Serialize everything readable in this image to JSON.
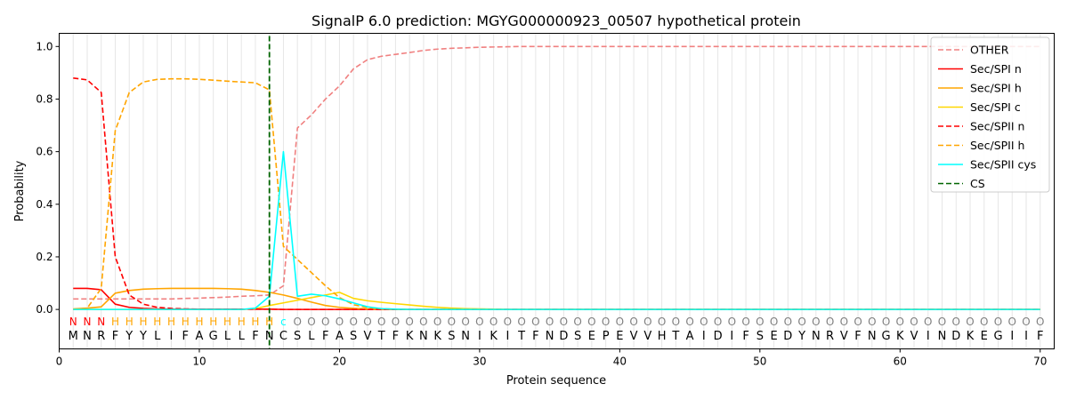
{
  "chart_data": {
    "type": "line",
    "title": "SignalP 6.0 prediction: MGYG000000923_00507 hypothetical protein",
    "xlabel": "Protein sequence",
    "ylabel": "Probability",
    "xlim": [
      0,
      71
    ],
    "ylim": [
      -0.15,
      1.05
    ],
    "xticks": [
      "0",
      "10",
      "20",
      "30",
      "40",
      "50",
      "60",
      "70"
    ],
    "yticks": [
      "0.0",
      "0.2",
      "0.4",
      "0.6",
      "0.8",
      "1.0"
    ],
    "legend_position": "top-right",
    "sequence": [
      "M",
      "N",
      "R",
      "F",
      "Y",
      "Y",
      "L",
      "I",
      "F",
      "A",
      "G",
      "L",
      "L",
      "F",
      "N",
      "C",
      "S",
      "L",
      "F",
      "A",
      "S",
      "V",
      "T",
      "F",
      "K",
      "N",
      "K",
      "S",
      "N",
      "I",
      "K",
      "I",
      "T",
      "F",
      "N",
      "D",
      "S",
      "E",
      "P",
      "E",
      "V",
      "V",
      "H",
      "T",
      "A",
      "I",
      "D",
      "I",
      "F",
      "S",
      "E",
      "D",
      "Y",
      "N",
      "R",
      "V",
      "F",
      "N",
      "G",
      "K",
      "V",
      "I",
      "N",
      "D",
      "K",
      "E",
      "G",
      "I",
      "I",
      "F"
    ],
    "region_labels": [
      "N",
      "N",
      "N",
      "H",
      "H",
      "H",
      "H",
      "H",
      "H",
      "H",
      "H",
      "H",
      "H",
      "H",
      "H",
      "c",
      "O",
      "O",
      "O",
      "O",
      "O",
      "O",
      "O",
      "O",
      "O",
      "O",
      "O",
      "O",
      "O",
      "O",
      "O",
      "O",
      "O",
      "O",
      "O",
      "O",
      "O",
      "O",
      "O",
      "O",
      "O",
      "O",
      "O",
      "O",
      "O",
      "O",
      "O",
      "O",
      "O",
      "O",
      "O",
      "O",
      "O",
      "O",
      "O",
      "O",
      "O",
      "O",
      "O",
      "O",
      "O",
      "O",
      "O",
      "O",
      "O",
      "O",
      "O",
      "O",
      "O",
      "O"
    ],
    "region_colors": {
      "N": "#ff0000",
      "H": "#ffa500",
      "c": "#00ffff",
      "O": "#808080"
    },
    "cs_position": 15,
    "series": [
      {
        "name": "OTHER",
        "color": "#f08080",
        "dash": true,
        "values": [
          0.04,
          0.04,
          0.04,
          0.04,
          0.04,
          0.04,
          0.04,
          0.04,
          0.042,
          0.043,
          0.045,
          0.047,
          0.05,
          0.052,
          0.055,
          0.09,
          0.69,
          0.74,
          0.8,
          0.85,
          0.915,
          0.95,
          0.963,
          0.97,
          0.977,
          0.985,
          0.99,
          0.993,
          0.995,
          0.997,
          0.998,
          0.999,
          1,
          1,
          1,
          1,
          1,
          1,
          1,
          1,
          1,
          1,
          1,
          1,
          1,
          1,
          1,
          1,
          1,
          1,
          1,
          1,
          1,
          1,
          1,
          1,
          1,
          1,
          1,
          1,
          1,
          1,
          1,
          1,
          1,
          1,
          1,
          1,
          1,
          1
        ]
      },
      {
        "name": "Sec/SPI n",
        "color": "#ff0000",
        "dash": false,
        "values": [
          0.08,
          0.08,
          0.075,
          0.02,
          0.008,
          0.004,
          0.002,
          0.001,
          0.001,
          0.001,
          0.001,
          0.001,
          0.001,
          0.001,
          0.001,
          0,
          0,
          0,
          0,
          0,
          0,
          0,
          0,
          0,
          0,
          0,
          0,
          0,
          0,
          0,
          0,
          0,
          0,
          0,
          0,
          0,
          0,
          0,
          0,
          0,
          0,
          0,
          0,
          0,
          0,
          0,
          0,
          0,
          0,
          0,
          0,
          0,
          0,
          0,
          0,
          0,
          0,
          0,
          0,
          0,
          0,
          0,
          0,
          0,
          0,
          0,
          0,
          0,
          0,
          0
        ]
      },
      {
        "name": "Sec/SPI h",
        "color": "#ffa500",
        "dash": false,
        "values": [
          0.002,
          0.005,
          0.01,
          0.062,
          0.072,
          0.077,
          0.079,
          0.08,
          0.08,
          0.08,
          0.08,
          0.079,
          0.077,
          0.072,
          0.065,
          0.055,
          0.042,
          0.028,
          0.015,
          0.008,
          0.004,
          0.002,
          0.001,
          0,
          0,
          0,
          0,
          0,
          0,
          0,
          0,
          0,
          0,
          0,
          0,
          0,
          0,
          0,
          0,
          0,
          0,
          0,
          0,
          0,
          0,
          0,
          0,
          0,
          0,
          0,
          0,
          0,
          0,
          0,
          0,
          0,
          0,
          0,
          0,
          0,
          0,
          0,
          0,
          0,
          0,
          0,
          0,
          0,
          0,
          0
        ]
      },
      {
        "name": "Sec/SPI c",
        "color": "#ffd700",
        "dash": false,
        "values": [
          0,
          0,
          0,
          0,
          0,
          0,
          0,
          0,
          0,
          0,
          0,
          0,
          0,
          0.003,
          0.015,
          0.025,
          0.035,
          0.045,
          0.055,
          0.065,
          0.042,
          0.033,
          0.027,
          0.022,
          0.017,
          0.012,
          0.008,
          0.005,
          0.003,
          0.002,
          0.001,
          0,
          0,
          0,
          0,
          0,
          0,
          0,
          0,
          0,
          0,
          0,
          0,
          0,
          0,
          0,
          0,
          0,
          0,
          0,
          0,
          0,
          0,
          0,
          0,
          0,
          0,
          0,
          0,
          0,
          0,
          0,
          0,
          0,
          0,
          0,
          0,
          0,
          0,
          0
        ]
      },
      {
        "name": "Sec/SPII n",
        "color": "#ff0000",
        "dash": true,
        "values": [
          0.88,
          0.873,
          0.825,
          0.2,
          0.055,
          0.02,
          0.008,
          0.004,
          0.002,
          0.001,
          0.001,
          0.001,
          0.001,
          0.001,
          0.001,
          0,
          0,
          0,
          0,
          0,
          0,
          0,
          0,
          0,
          0,
          0,
          0,
          0,
          0,
          0,
          0,
          0,
          0,
          0,
          0,
          0,
          0,
          0,
          0,
          0,
          0,
          0,
          0,
          0,
          0,
          0,
          0,
          0,
          0,
          0,
          0,
          0,
          0,
          0,
          0,
          0,
          0,
          0,
          0,
          0,
          0,
          0,
          0,
          0,
          0,
          0,
          0,
          0,
          0,
          0
        ]
      },
      {
        "name": "Sec/SPII h",
        "color": "#ffa500",
        "dash": true,
        "values": [
          0,
          0.005,
          0.08,
          0.68,
          0.825,
          0.865,
          0.875,
          0.877,
          0.877,
          0.875,
          0.872,
          0.868,
          0.865,
          0.862,
          0.835,
          0.24,
          0.19,
          0.14,
          0.09,
          0.045,
          0.018,
          0.007,
          0.003,
          0.001,
          0,
          0,
          0,
          0,
          0,
          0,
          0,
          0,
          0,
          0,
          0,
          0,
          0,
          0,
          0,
          0,
          0,
          0,
          0,
          0,
          0,
          0,
          0,
          0,
          0,
          0,
          0,
          0,
          0,
          0,
          0,
          0,
          0,
          0,
          0,
          0,
          0,
          0,
          0,
          0,
          0,
          0,
          0,
          0,
          0,
          0
        ]
      },
      {
        "name": "Sec/SPII cys",
        "color": "#00ffff",
        "dash": false,
        "values": [
          0,
          0,
          0,
          0,
          0,
          0,
          0,
          0,
          0,
          0,
          0,
          0,
          0,
          0.005,
          0.05,
          0.6,
          0.05,
          0.058,
          0.052,
          0.04,
          0.025,
          0.01,
          0.003,
          0.001,
          0,
          0,
          0,
          0,
          0,
          0,
          0,
          0,
          0,
          0,
          0,
          0,
          0,
          0,
          0,
          0,
          0,
          0,
          0,
          0,
          0,
          0,
          0,
          0,
          0,
          0,
          0,
          0,
          0,
          0,
          0,
          0,
          0,
          0,
          0,
          0,
          0,
          0,
          0,
          0,
          0,
          0,
          0,
          0,
          0,
          0
        ]
      },
      {
        "name": "CS",
        "color": "#006400",
        "dash": true,
        "values": []
      }
    ]
  }
}
